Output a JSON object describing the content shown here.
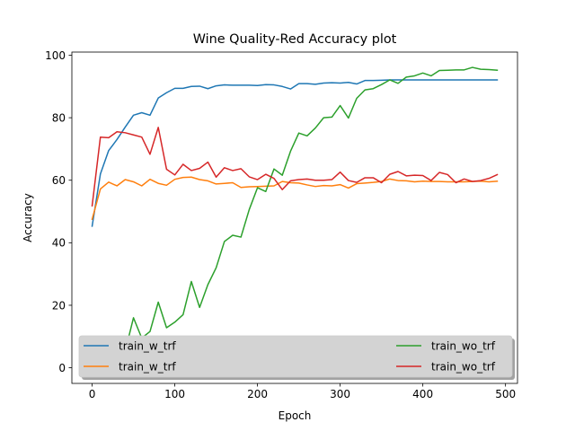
{
  "chart_data": {
    "type": "line",
    "title": "Wine Quality-Red Accuracy plot",
    "xlabel": "Epoch",
    "ylabel": "Accuracy",
    "xlim": [
      -24.5,
      514.5
    ],
    "ylim": [
      -5,
      101
    ],
    "xticks": [
      0,
      100,
      200,
      300,
      400,
      500
    ],
    "yticks": [
      0,
      20,
      40,
      60,
      80,
      100
    ],
    "grid": false,
    "legend": {
      "placement": "lower-center",
      "columns": 2,
      "shadow": true
    },
    "x": [
      0,
      10,
      20,
      30,
      40,
      50,
      60,
      70,
      80,
      90,
      100,
      110,
      120,
      130,
      140,
      150,
      160,
      170,
      180,
      190,
      200,
      210,
      220,
      230,
      240,
      250,
      260,
      270,
      280,
      290,
      300,
      310,
      320,
      330,
      340,
      350,
      360,
      370,
      380,
      390,
      400,
      410,
      420,
      430,
      440,
      450,
      460,
      470,
      480,
      490
    ],
    "series": [
      {
        "name": "train_w_trf",
        "color": "#1f77b4",
        "values": [
          45.3,
          62.0,
          69.5,
          73.0,
          77.0,
          80.8,
          81.6,
          80.8,
          86.3,
          88.0,
          89.4,
          89.4,
          90.0,
          90.1,
          89.3,
          90.2,
          90.5,
          90.4,
          90.4,
          90.4,
          90.3,
          90.6,
          90.5,
          90.0,
          89.2,
          90.9,
          90.9,
          90.7,
          91.1,
          91.2,
          91.1,
          91.3,
          90.8,
          91.9,
          91.9,
          92.0,
          92.1,
          92.1,
          92.1,
          92.1,
          92.1,
          92.1,
          92.1,
          92.1,
          92.1,
          92.1,
          92.1,
          92.1,
          92.1,
          92.1
        ]
      },
      {
        "name": "train_w_trf",
        "color": "#ff7f0e",
        "values": [
          47.5,
          57.2,
          59.4,
          58.2,
          60.2,
          59.5,
          58.2,
          60.3,
          59.0,
          58.4,
          60.3,
          60.9,
          61.0,
          60.2,
          59.8,
          58.8,
          59.0,
          59.2,
          57.7,
          57.9,
          58.0,
          58.1,
          58.2,
          59.6,
          59.2,
          59.1,
          58.5,
          58.0,
          58.3,
          58.2,
          58.6,
          57.5,
          58.9,
          59.1,
          59.3,
          59.6,
          60.4,
          59.9,
          59.8,
          59.5,
          59.7,
          59.6,
          59.6,
          59.5,
          59.5,
          59.5,
          59.6,
          59.7,
          59.5,
          59.7
        ]
      },
      {
        "name": "train_wo_trf",
        "color": "#2ca02c",
        "values": [
          0.0,
          1.5,
          4.6,
          2.2,
          5.3,
          16.0,
          9.5,
          11.6,
          21.0,
          12.8,
          14.6,
          17.0,
          27.6,
          19.3,
          26.6,
          32.0,
          40.4,
          42.4,
          41.8,
          50.6,
          57.6,
          56.4,
          63.6,
          61.6,
          69.3,
          75.1,
          74.2,
          76.7,
          80.0,
          80.2,
          83.9,
          79.9,
          86.2,
          88.9,
          89.3,
          90.6,
          92.1,
          91.0,
          93.0,
          93.4,
          94.3,
          93.4,
          95.1,
          95.2,
          95.3,
          95.3,
          96.1,
          95.5,
          95.4,
          95.2
        ]
      },
      {
        "name": "train_wo_trf",
        "color": "#d62728",
        "values": [
          51.8,
          73.8,
          73.6,
          75.5,
          75.2,
          74.5,
          73.8,
          68.3,
          76.9,
          63.5,
          61.7,
          65.1,
          63.1,
          63.8,
          65.8,
          61.0,
          64.0,
          63.1,
          63.7,
          61.1,
          60.2,
          61.9,
          60.6,
          57.0,
          59.8,
          60.2,
          60.4,
          60.0,
          60.0,
          60.2,
          62.6,
          59.9,
          59.3,
          60.8,
          60.8,
          59.2,
          61.9,
          62.8,
          61.4,
          61.6,
          61.5,
          59.9,
          62.5,
          61.8,
          59.2,
          60.4,
          59.6,
          59.9,
          60.6,
          61.8
        ]
      }
    ]
  }
}
